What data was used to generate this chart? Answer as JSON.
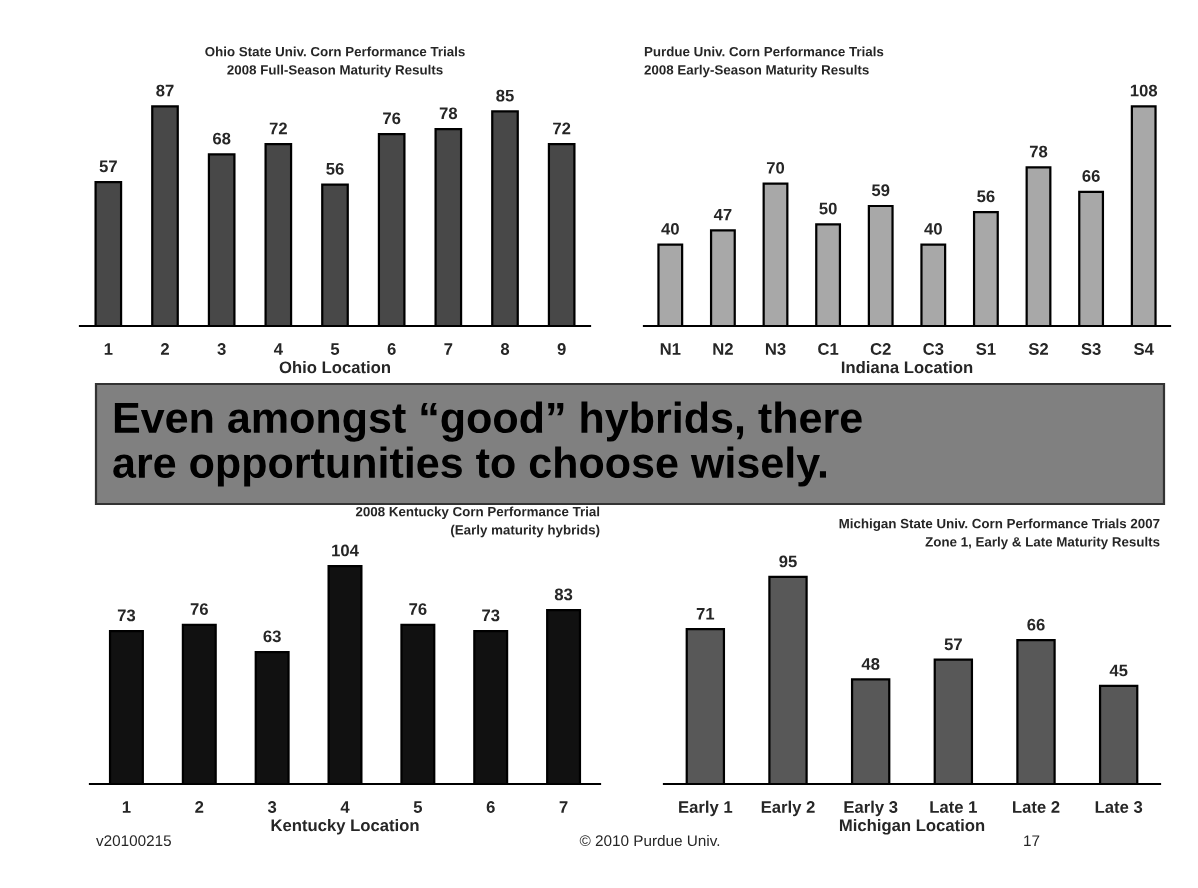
{
  "chart_data": [
    {
      "type": "bar",
      "title": "Ohio State Univ. Corn Performance Trials\n2008 Full-Season Maturity Results",
      "xlabel": "Ohio Location",
      "categories": [
        "1",
        "2",
        "3",
        "4",
        "5",
        "6",
        "7",
        "8",
        "9"
      ],
      "values": [
        57,
        87,
        68,
        72,
        56,
        76,
        78,
        85,
        72
      ],
      "color": "#484848",
      "data_labels": true
    },
    {
      "type": "bar",
      "title": "Purdue Univ. Corn Performance Trials\n2008 Early-Season Maturity Results",
      "xlabel": "Indiana Location",
      "categories": [
        "N1",
        "N2",
        "N3",
        "C1",
        "C2",
        "C3",
        "S1",
        "S2",
        "S3",
        "S4"
      ],
      "values": [
        40,
        47,
        70,
        50,
        59,
        40,
        56,
        78,
        66,
        108
      ],
      "color": "#a8a8a8",
      "data_labels": true
    },
    {
      "type": "bar",
      "title": "2008 Kentucky Corn Performance Trial\n(Early maturity hybrids)",
      "xlabel": "Kentucky Location",
      "categories": [
        "1",
        "2",
        "3",
        "4",
        "5",
        "6",
        "7"
      ],
      "values": [
        73,
        76,
        63,
        104,
        76,
        73,
        83
      ],
      "color": "#111111",
      "data_labels": true
    },
    {
      "type": "bar",
      "title": "Michigan State Univ. Corn Performance Trials 2007\nZone 1, Early & Late Maturity Results",
      "xlabel": "Michigan Location",
      "categories": [
        "Early 1",
        "Early 2",
        "Early 3",
        "Late 1",
        "Late 2",
        "Late 3"
      ],
      "values": [
        71,
        95,
        48,
        57,
        66,
        45
      ],
      "color": "#585858",
      "data_labels": true
    },
    {
      "type": "other",
      "title": "Even amongst “good” hybrids, there\nare opportunities to choose wisely.",
      "annotations": [
        "v20100215",
        "© 2010 Purdue Univ.",
        "17"
      ]
    }
  ]
}
